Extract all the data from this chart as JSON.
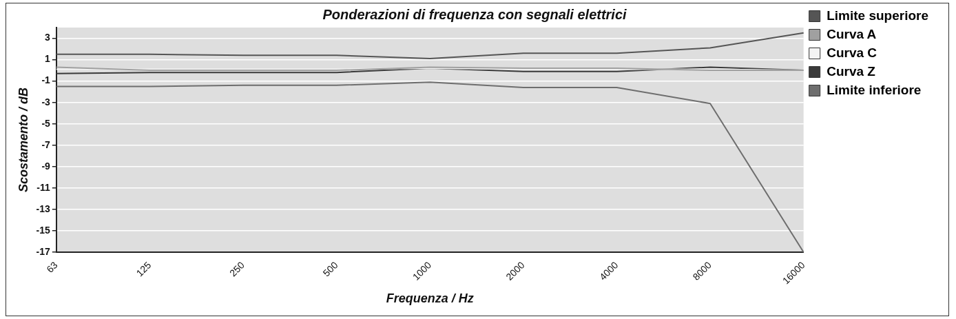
{
  "chart_data": {
    "type": "line",
    "title": "Ponderazioni di frequenza con segnali elettrici",
    "xlabel": "Frequenza / Hz",
    "ylabel": "Scostamento / dB",
    "categories": [
      "63",
      "125",
      "250",
      "500",
      "1000",
      "2000",
      "4000",
      "8000",
      "16000"
    ],
    "series": [
      {
        "name": "Limite superiore",
        "color": "#555555",
        "values": [
          1.5,
          1.5,
          1.4,
          1.4,
          1.1,
          1.6,
          1.6,
          2.1,
          3.5
        ]
      },
      {
        "name": "Curva A",
        "color": "#a0a0a0",
        "values": [
          0.3,
          0.0,
          0.0,
          0.0,
          0.3,
          0.2,
          0.2,
          0.0,
          0.0
        ]
      },
      {
        "name": "Curva C",
        "color": "#f4f4f4",
        "values": [
          0.1,
          0.1,
          0.1,
          0.1,
          0.2,
          0.1,
          0.1,
          0.1,
          0.0
        ]
      },
      {
        "name": "Curva Z",
        "color": "#3a3a3a",
        "values": [
          -0.3,
          -0.2,
          -0.2,
          -0.2,
          0.2,
          -0.1,
          -0.1,
          0.3,
          0.0
        ]
      },
      {
        "name": "Limite inferiore",
        "color": "#6e6e6e",
        "values": [
          -1.5,
          -1.5,
          -1.4,
          -1.4,
          -1.1,
          -1.6,
          -1.6,
          -3.1,
          -17
        ]
      }
    ],
    "ylim": [
      -17,
      4
    ],
    "yticks": [
      -17,
      -15,
      -13,
      -11,
      -9,
      -7,
      -5,
      -3,
      -1,
      1,
      3
    ],
    "grid": "y",
    "legend": "right",
    "marker": "none",
    "line_style": "solid"
  }
}
